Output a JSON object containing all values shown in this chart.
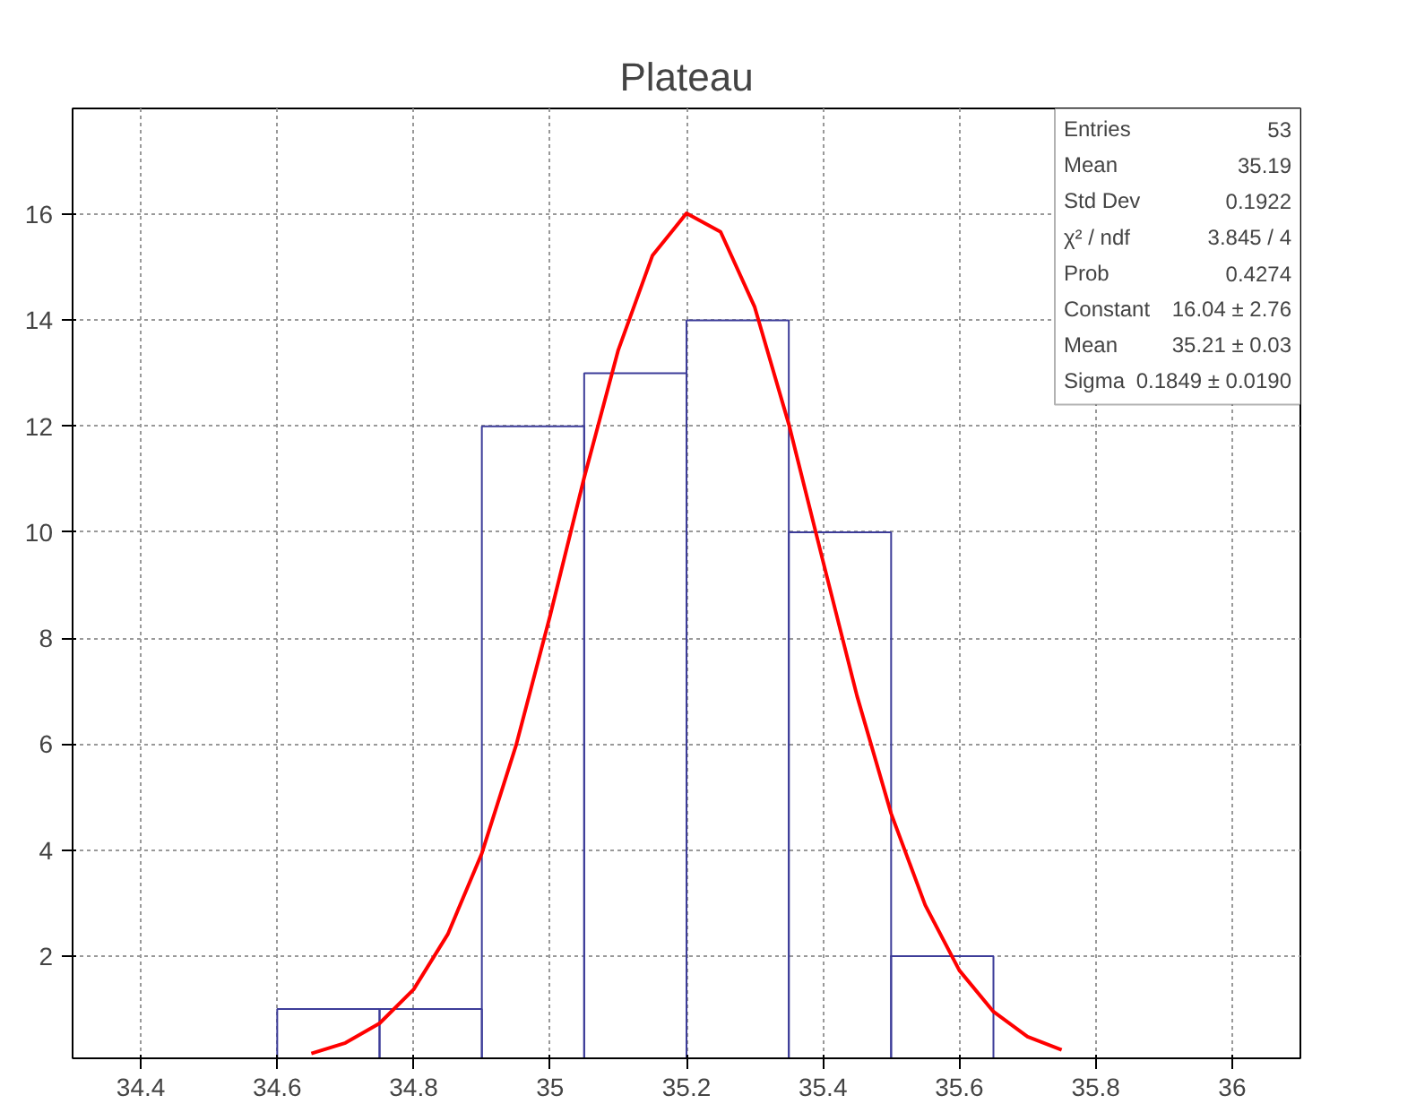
{
  "chart_data": {
    "type": "histogram",
    "title": "Plateau",
    "bins": [
      34.6,
      34.75,
      34.9,
      35.05,
      35.2,
      35.35,
      35.5,
      35.65
    ],
    "values": [
      1,
      1,
      12,
      13,
      14,
      10,
      2
    ],
    "color": "#3d3d99",
    "series": [
      {
        "type": "line",
        "color": "#ff0000",
        "x": [
          34.65,
          34.7,
          34.75,
          34.8,
          34.85,
          34.9,
          34.95,
          35.0,
          35.05,
          35.1,
          35.15,
          35.2,
          35.25,
          35.3,
          35.35,
          35.4,
          35.45,
          35.5,
          35.55,
          35.6,
          35.65,
          35.7,
          35.75
        ],
        "values": [
          0.16,
          0.36,
          0.73,
          1.37,
          2.41,
          3.94,
          5.97,
          8.42,
          11.03,
          13.44,
          15.22,
          16.02,
          15.67,
          14.25,
          12.04,
          9.46,
          6.91,
          4.69,
          2.96,
          1.73,
          0.95,
          0.48,
          0.23
        ]
      }
    ],
    "xlim": [
      34.3,
      36.1
    ],
    "ylim": [
      0.07,
      18.0
    ],
    "xticks": [
      34.4,
      34.6,
      34.8,
      35,
      35.2,
      35.4,
      35.6,
      35.8,
      36
    ],
    "yticks": [
      2,
      4,
      6,
      8,
      10,
      12,
      14,
      16
    ],
    "grid": true,
    "annotations": [
      "Entries",
      "53",
      "Mean",
      "35.19",
      "Std Dev",
      "0.1922",
      "χ² / ndf",
      "3.845 / 4",
      "Prob",
      "0.4274",
      "Constant",
      "16.04 ± 2.76",
      "Mean",
      "35.21 ± 0.03",
      "Sigma",
      "0.1849 ± 0.0190"
    ]
  }
}
